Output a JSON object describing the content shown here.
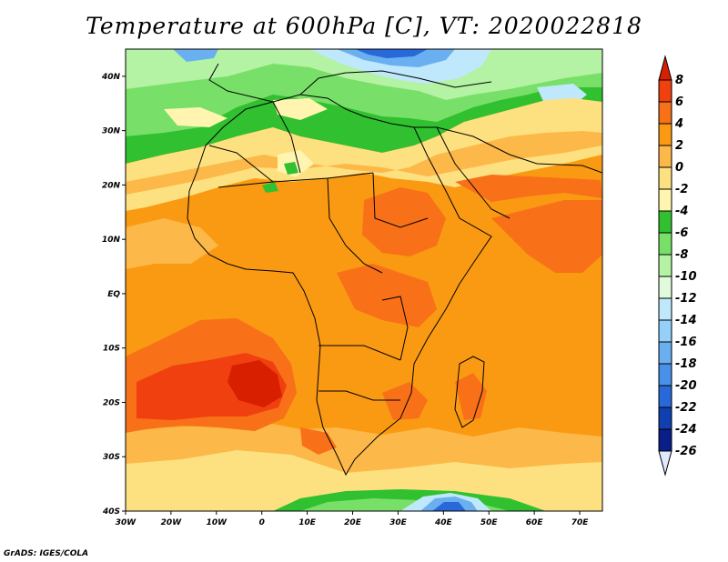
{
  "title": "Temperature at 600hPa [C], VT: 2020022818",
  "credit": "GrADS: IGES/COLA",
  "map": {
    "lon_range": [
      -30,
      75
    ],
    "lat_range": [
      -40,
      45
    ],
    "x_ticks": [
      {
        "value": -30,
        "label": "30W"
      },
      {
        "value": -20,
        "label": "20W"
      },
      {
        "value": -10,
        "label": "10W"
      },
      {
        "value": 0,
        "label": "0"
      },
      {
        "value": 10,
        "label": "10E"
      },
      {
        "value": 20,
        "label": "20E"
      },
      {
        "value": 30,
        "label": "30E"
      },
      {
        "value": 40,
        "label": "40E"
      },
      {
        "value": 50,
        "label": "50E"
      },
      {
        "value": 60,
        "label": "60E"
      },
      {
        "value": 70,
        "label": "70E"
      }
    ],
    "y_ticks": [
      {
        "value": 40,
        "label": "40N"
      },
      {
        "value": 30,
        "label": "30N"
      },
      {
        "value": 20,
        "label": "20N"
      },
      {
        "value": 10,
        "label": "10N"
      },
      {
        "value": 0,
        "label": "EQ"
      },
      {
        "value": -10,
        "label": "10S"
      },
      {
        "value": -20,
        "label": "20S"
      },
      {
        "value": -30,
        "label": "30S"
      },
      {
        "value": -40,
        "label": "40S"
      }
    ]
  },
  "colorbar": {
    "labels": [
      "8",
      "6",
      "4",
      "2",
      "0",
      "-2",
      "-4",
      "-6",
      "-8",
      "-10",
      "-12",
      "-14",
      "-16",
      "-18",
      "-20",
      "-22",
      "-24",
      "-26"
    ],
    "colors": [
      "#d82000",
      "#f04010",
      "#f87018",
      "#fa9a12",
      "#fcb848",
      "#fde080",
      "#fff5b0",
      "#30c030",
      "#78e068",
      "#b4f2a4",
      "#e0fadc",
      "#c0e8fc",
      "#94d0f8",
      "#6ab0f0",
      "#4890e8",
      "#2868d8",
      "#1040b0",
      "#0a1e88",
      "#061068",
      "#dfe8ff"
    ]
  }
}
